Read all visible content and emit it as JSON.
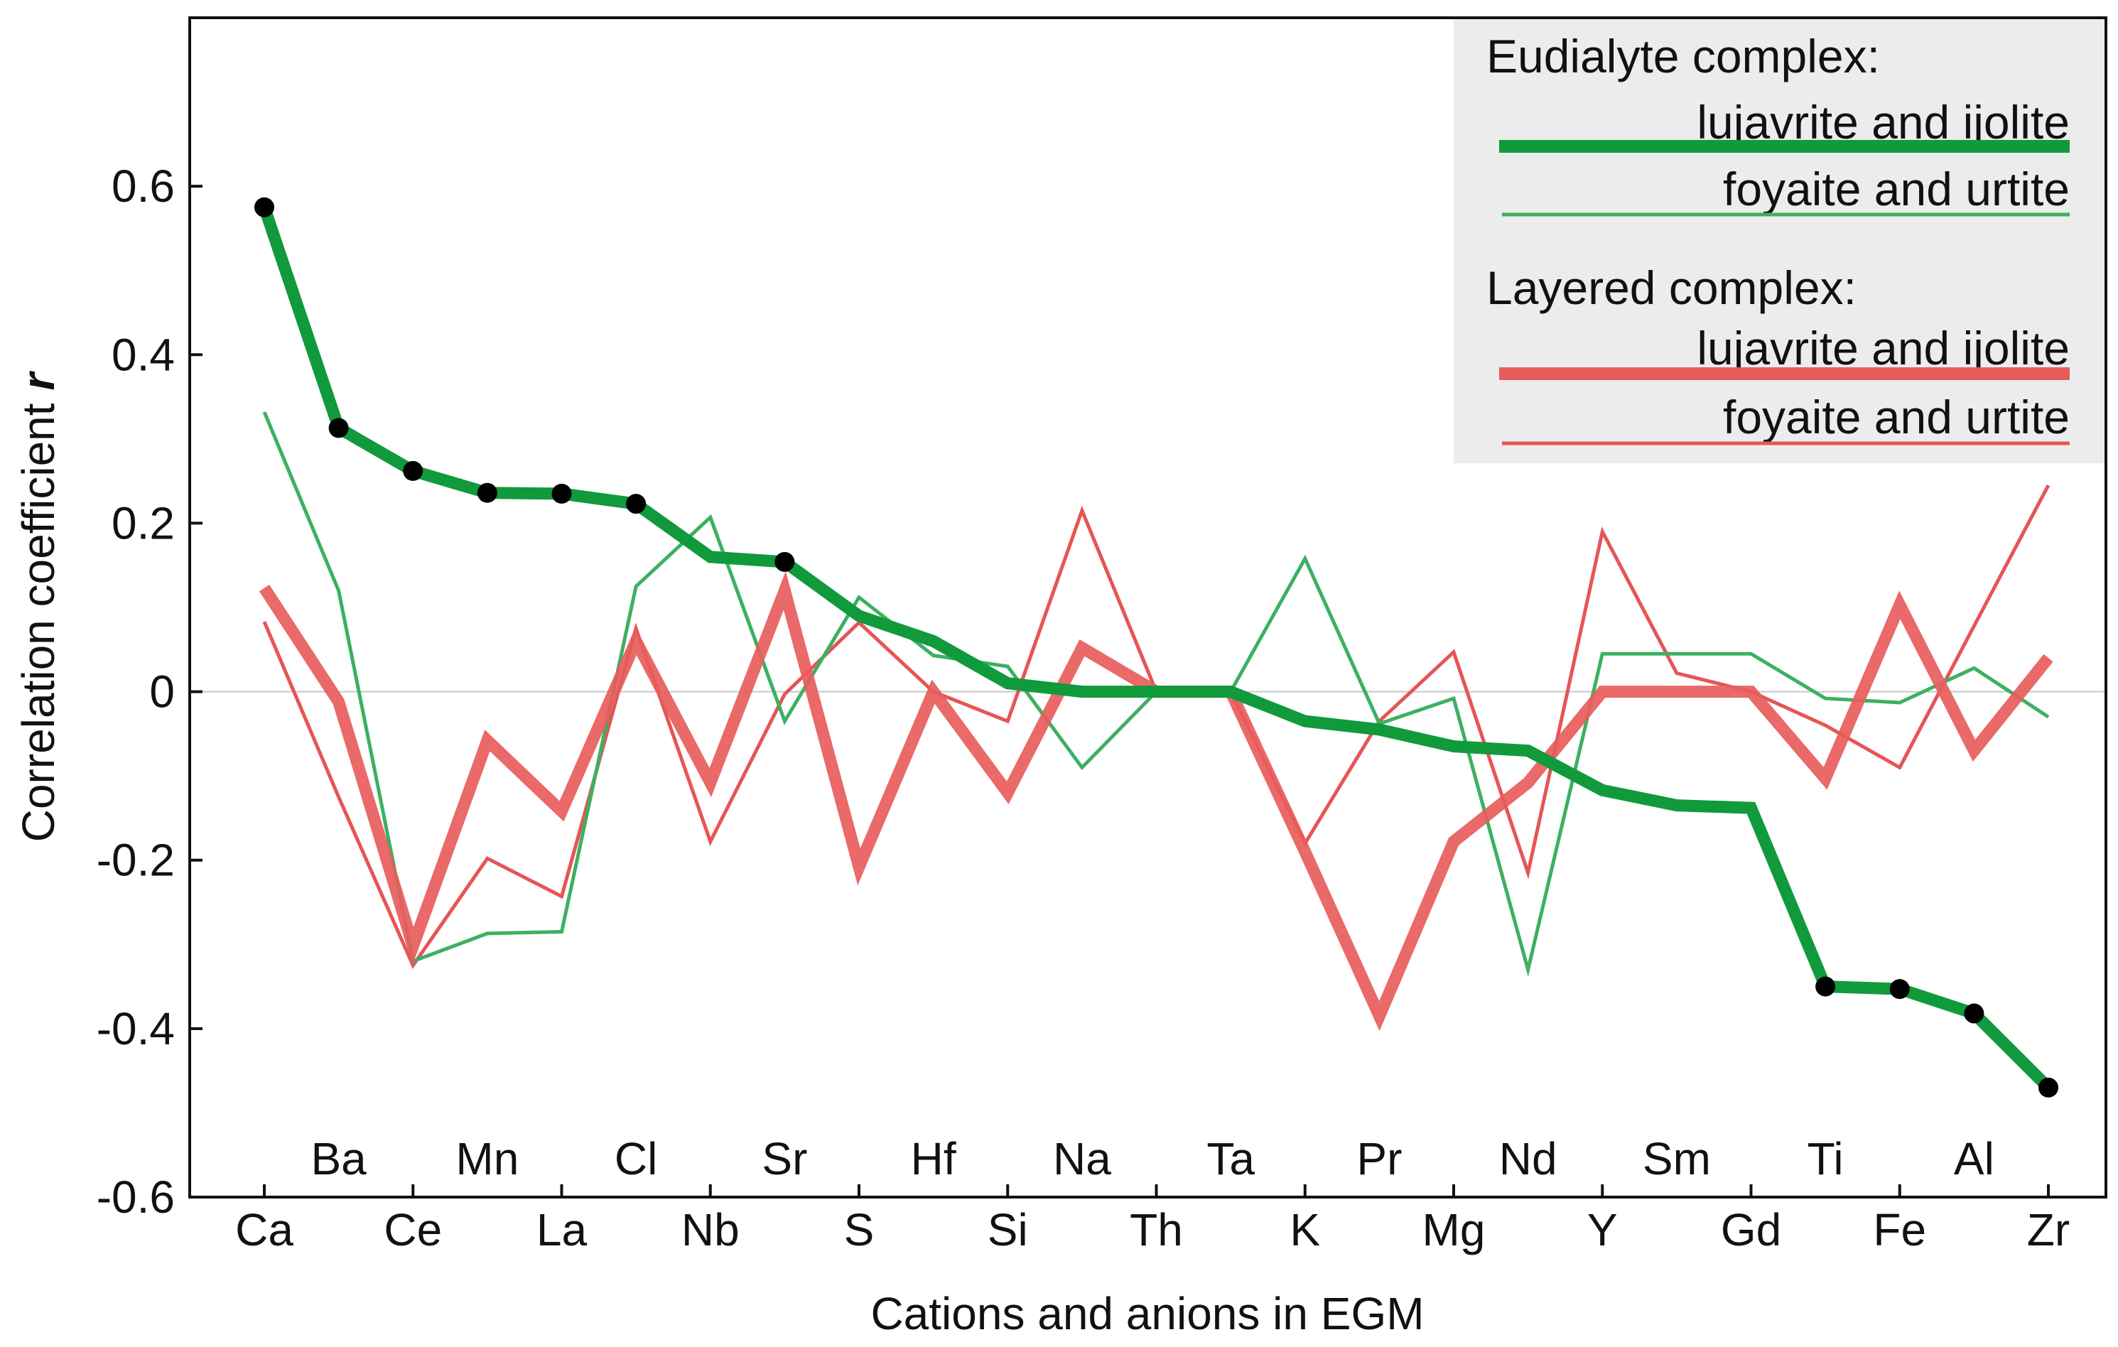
{
  "chart_data": {
    "type": "line",
    "xlabel": "Cations and anions in EGM",
    "ylabel": "Correlation coefficient ",
    "ylabel_symbol": "r",
    "ylim": [
      -0.6,
      0.8
    ],
    "yticks": [
      -0.6,
      -0.4,
      -0.2,
      0,
      0.2,
      0.4,
      0.6
    ],
    "ytick_labels": [
      "-0.6",
      "-0.4",
      "-0.2",
      "0",
      "0.2",
      "0.4",
      "0.6"
    ],
    "categories": [
      "Ca",
      "Ba",
      "Ce",
      "Mn",
      "La",
      "Cl",
      "Nb",
      "Sr",
      "S",
      "Hf",
      "Si",
      "Na",
      "Th",
      "Ta",
      "K",
      "Pr",
      "Mg",
      "Nd",
      "Y",
      "Sm",
      "Gd",
      "Ti",
      "Fe",
      "Al",
      "Zr"
    ],
    "zero_line": true,
    "legend": {
      "position": "top-right",
      "groups": [
        {
          "title": "Eudialyte complex:",
          "entries": [
            "lujavrite and ijolite",
            "foyaite and urtite"
          ]
        },
        {
          "title": "Layered complex:",
          "entries": [
            "lujavrite and ijolite",
            "foyaite and urtite"
          ]
        }
      ]
    },
    "series": [
      {
        "name": "Eudialyte complex: lujavrite and ijolite",
        "color": "#109a3c",
        "style": "thick",
        "values": [
          0.575,
          0.313,
          0.262,
          0.236,
          0.235,
          0.223,
          0.16,
          0.154,
          0.09,
          0.06,
          0.01,
          0.0,
          0.0,
          0.0,
          -0.035,
          -0.045,
          -0.065,
          -0.07,
          -0.117,
          -0.135,
          -0.138,
          -0.35,
          -0.353,
          -0.382,
          -0.47
        ],
        "markers": [
          true,
          true,
          true,
          true,
          true,
          true,
          false,
          true,
          false,
          false,
          false,
          false,
          false,
          false,
          false,
          false,
          false,
          false,
          false,
          false,
          false,
          true,
          true,
          true,
          true
        ]
      },
      {
        "name": "Eudialyte complex: foyaite and urtite",
        "color": "#3cb062",
        "style": "thin",
        "values": [
          0.332,
          0.12,
          -0.32,
          -0.287,
          -0.285,
          0.125,
          0.207,
          -0.035,
          0.112,
          0.043,
          0.03,
          -0.09,
          0.0,
          0.0,
          0.158,
          -0.038,
          -0.008,
          -0.33,
          0.045,
          0.045,
          0.045,
          -0.008,
          -0.013,
          0.028,
          -0.03
        ]
      },
      {
        "name": "Layered complex: lujavrite and ijolite",
        "color": "#e85c5c",
        "style": "thick",
        "values": [
          0.123,
          -0.012,
          -0.302,
          -0.058,
          -0.142,
          0.06,
          -0.108,
          0.12,
          -0.208,
          0.0,
          -0.12,
          0.052,
          0.0,
          0.0,
          -0.19,
          -0.385,
          -0.178,
          -0.108,
          0.0,
          0.0,
          0.0,
          -0.103,
          0.103,
          -0.07,
          0.04
        ]
      },
      {
        "name": "Layered complex: foyaite and urtite",
        "color": "#e65555",
        "style": "thin",
        "values": [
          0.083,
          -0.125,
          -0.325,
          -0.198,
          -0.243,
          0.075,
          -0.178,
          -0.003,
          0.082,
          0.0,
          -0.035,
          0.215,
          0.0,
          0.0,
          -0.18,
          -0.035,
          0.047,
          -0.215,
          0.19,
          0.022,
          0.0,
          -0.04,
          -0.09,
          0.078,
          0.245
        ]
      }
    ]
  }
}
